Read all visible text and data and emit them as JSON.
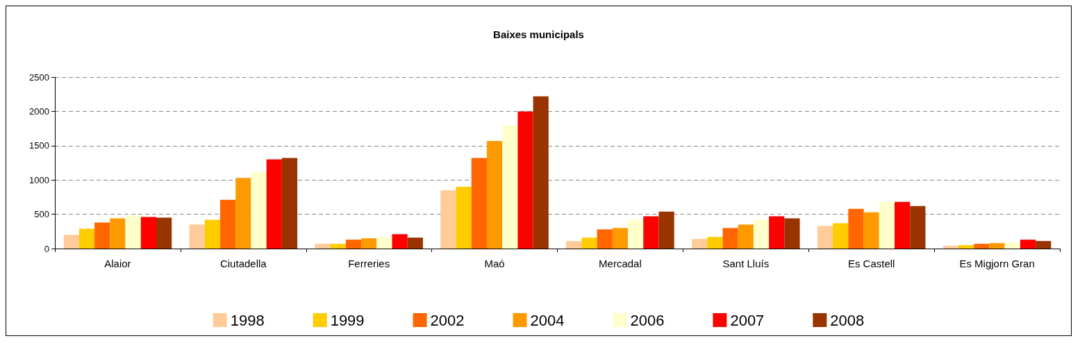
{
  "chart_data": {
    "type": "bar",
    "title": "Baixes municipals",
    "categories": [
      "Alaior",
      "Ciutadella",
      "Ferreries",
      "Maó",
      "Mercadal",
      "Sant Lluís",
      "Es Castell",
      "Es Migjorn Gran"
    ],
    "series": [
      {
        "name": "1998",
        "color": "#ffcc99",
        "values": [
          200,
          350,
          70,
          850,
          110,
          140,
          330,
          40
        ]
      },
      {
        "name": "1999",
        "color": "#ffcc00",
        "values": [
          290,
          420,
          70,
          900,
          160,
          170,
          370,
          50
        ]
      },
      {
        "name": "2002",
        "color": "#ff6600",
        "values": [
          380,
          710,
          130,
          1320,
          280,
          300,
          580,
          70
        ]
      },
      {
        "name": "2004",
        "color": "#ff9900",
        "values": [
          440,
          1030,
          150,
          1570,
          300,
          350,
          530,
          80
        ]
      },
      {
        "name": "2006",
        "color": "#ffffcc",
        "values": [
          480,
          1120,
          170,
          1800,
          420,
          420,
          680,
          90
        ]
      },
      {
        "name": "2007",
        "color": "#ff0000",
        "values": [
          460,
          1300,
          210,
          2000,
          470,
          470,
          680,
          130
        ]
      },
      {
        "name": "2008",
        "color": "#993300",
        "values": [
          450,
          1320,
          160,
          2220,
          540,
          440,
          620,
          110
        ]
      }
    ],
    "ylim": [
      0,
      2500
    ],
    "yticks": [
      0,
      500,
      1000,
      1500,
      2000,
      2500
    ],
    "grid": "y",
    "legend": "bottom"
  }
}
